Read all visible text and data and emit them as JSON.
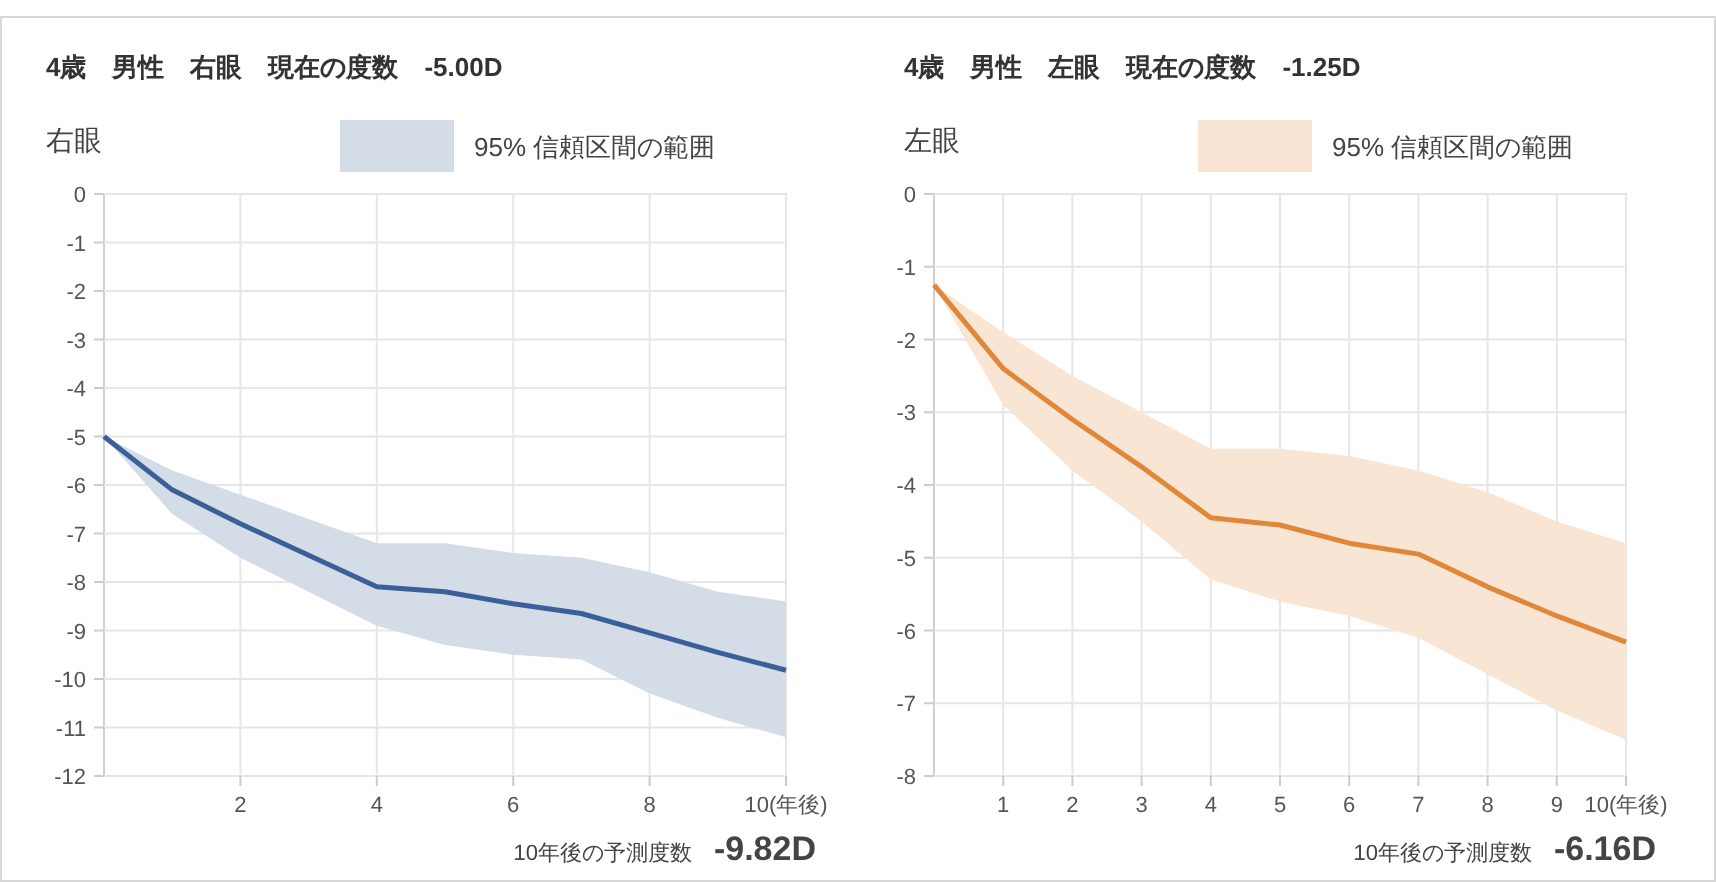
{
  "chart_data": [
    {
      "type": "line",
      "title": "4歳　男性　右眼　現在の度数　-5.00D",
      "ylabel": "右眼",
      "annotations": [
        "10年後の予測度数　**-9.82D**"
      ],
      "x": [
        0,
        1,
        2,
        3,
        4,
        5,
        6,
        7,
        8,
        9,
        10
      ],
      "series": [
        {
          "name": "95% 信頼区間の範囲",
          "color": "#3b5f98",
          "values": [
            -5.0,
            -6.1,
            -6.8,
            -7.45,
            -8.1,
            -8.2,
            -8.45,
            -8.65,
            -9.05,
            -9.45,
            -9.82
          ],
          "upper": [
            -5.0,
            -5.7,
            -6.2,
            -6.7,
            -7.2,
            -7.2,
            -7.4,
            -7.5,
            -7.8,
            -8.2,
            -8.4
          ],
          "lower": [
            -5.0,
            -6.6,
            -7.5,
            -8.2,
            -8.9,
            -9.3,
            -9.5,
            -9.6,
            -10.3,
            -10.8,
            -11.2
          ]
        }
      ],
      "xlim": [
        0,
        10
      ],
      "xticks": [
        2,
        4,
        6,
        8,
        {
          "value": 10,
          "label": "10(年後)"
        }
      ],
      "ylim": [
        -12,
        0
      ],
      "yticks": [
        0,
        -1,
        -2,
        -3,
        -4,
        -5,
        -6,
        -7,
        -8,
        -9,
        -10,
        -11,
        -12
      ],
      "grid": true,
      "legend": "top",
      "marker": "none",
      "line_style": "solid"
    },
    {
      "type": "line",
      "title": "4歳　男性　左眼　現在の度数　-1.25D",
      "ylabel": "左眼",
      "annotations": [
        "10年後の予測度数　**-6.16D**"
      ],
      "x": [
        0,
        1,
        2,
        3,
        4,
        5,
        6,
        7,
        8,
        9,
        10
      ],
      "series": [
        {
          "name": "95% 信頼区間の範囲",
          "color": "#e0873a",
          "values": [
            -1.25,
            -2.4,
            -3.1,
            -3.75,
            -4.45,
            -4.55,
            -4.8,
            -4.95,
            -5.4,
            -5.8,
            -6.16
          ],
          "upper": [
            -1.25,
            -1.9,
            -2.5,
            -3.0,
            -3.5,
            -3.5,
            -3.6,
            -3.8,
            -4.1,
            -4.5,
            -4.8
          ],
          "lower": [
            -1.25,
            -2.9,
            -3.8,
            -4.5,
            -5.3,
            -5.6,
            -5.8,
            -6.1,
            -6.6,
            -7.1,
            -7.5
          ]
        }
      ],
      "xlim": [
        0,
        10
      ],
      "xticks": [
        1,
        2,
        3,
        4,
        5,
        6,
        7,
        8,
        9,
        {
          "value": 10,
          "label": "10(年後)"
        }
      ],
      "ylim": [
        -8,
        0
      ],
      "yticks": [
        0,
        -1,
        -2,
        -3,
        -4,
        -5,
        -6,
        -7,
        -8
      ],
      "grid": true,
      "legend": "top",
      "marker": "none",
      "line_style": "solid"
    }
  ]
}
